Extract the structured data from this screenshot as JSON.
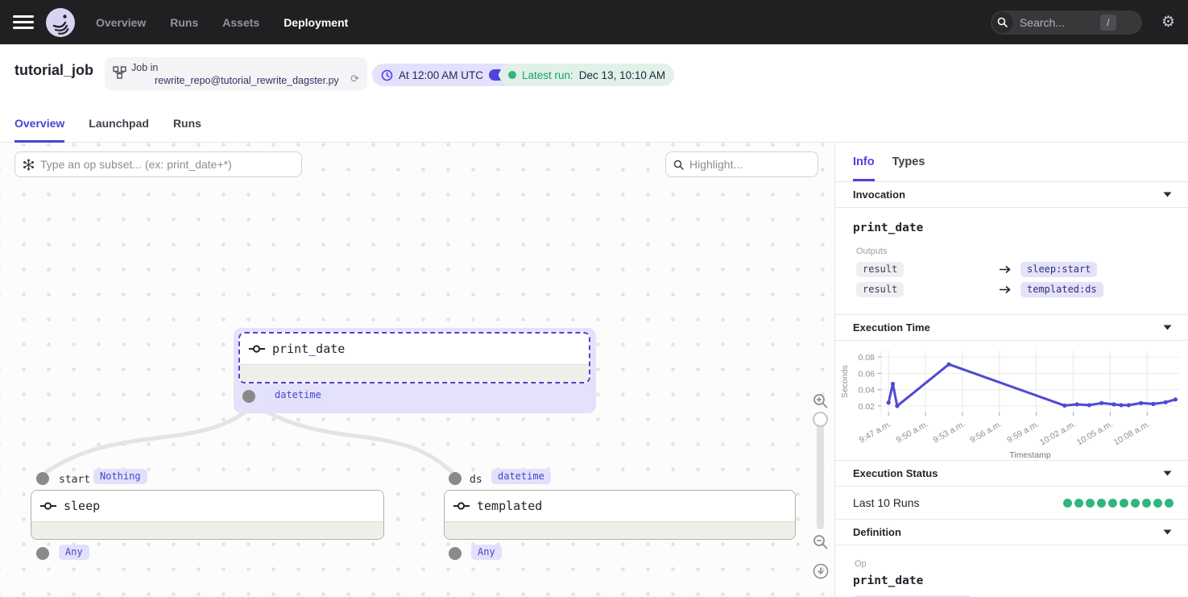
{
  "topbar": {
    "nav": [
      "Overview",
      "Runs",
      "Assets",
      "Deployment"
    ],
    "active_nav": "Deployment",
    "search_placeholder": "Search...",
    "search_shortcut": "/"
  },
  "header": {
    "title": "tutorial_job",
    "job_label": "Job in",
    "repo": "rewrite_repo@tutorial_rewrite_dagster.py",
    "schedule": "At 12:00 AM UTC",
    "latest_run_label": "Latest run:",
    "latest_run_value": "Dec 13, 10:10 AM"
  },
  "tabs": {
    "items": [
      "Overview",
      "Launchpad",
      "Runs"
    ],
    "active": "Overview"
  },
  "canvas": {
    "op_filter_placeholder": "Type an op subset... (ex: print_date+*)",
    "highlight_placeholder": "Highlight...",
    "nodes": {
      "print_date": {
        "name": "print_date",
        "output_type": "datetime",
        "selected": true
      },
      "sleep": {
        "name": "sleep",
        "input_name": "start",
        "input_type": "Nothing",
        "output_type": "Any"
      },
      "templated": {
        "name": "templated",
        "input_name": "ds",
        "input_type": "datetime",
        "output_type": "Any"
      }
    }
  },
  "panel": {
    "tabs": [
      "Info",
      "Types"
    ],
    "active_tab": "Info",
    "invocation": {
      "header": "Invocation",
      "name": "print_date",
      "outputs_label": "Outputs",
      "outputs": [
        {
          "from": "result",
          "to": "sleep:start"
        },
        {
          "from": "result",
          "to": "templated:ds"
        }
      ]
    },
    "execution_time": {
      "header": "Execution Time"
    },
    "execution_status": {
      "header": "Execution Status",
      "label": "Last 10 Runs",
      "run_count": 10,
      "status_color": "#2fb67e"
    },
    "definition": {
      "header": "Definition",
      "op_label": "Op",
      "op_name": "print_date"
    }
  },
  "chart_data": {
    "type": "line",
    "title": "Execution Time",
    "ylabel": "Seconds",
    "xlabel": "Timestamp",
    "x_tick_labels": [
      "9:47 a.m.",
      "9:50 a.m.",
      "9:53 a.m.",
      "9:56 a.m.",
      "9:59 a.m.",
      "10:02 a.m.",
      "10:05 a.m.",
      "10:08 a.m."
    ],
    "x_tick_minutes": [
      0,
      3,
      6,
      9,
      12,
      15,
      18,
      21
    ],
    "y_ticks": [
      0.02,
      0.04,
      0.06,
      0.08
    ],
    "xlim": [
      -0.6,
      23.6
    ],
    "ylim": [
      0.012,
      0.088
    ],
    "grid": true,
    "legend": "none",
    "line_color": "#5048d5",
    "points_minutes_seconds": [
      [
        0,
        0.024
      ],
      [
        0.35,
        0.047
      ],
      [
        0.7,
        0.02
      ],
      [
        4.9,
        0.071
      ],
      [
        14.3,
        0.0205
      ],
      [
        15.3,
        0.022
      ],
      [
        16.3,
        0.021
      ],
      [
        17.3,
        0.0235
      ],
      [
        18.3,
        0.022
      ],
      [
        18.9,
        0.021
      ],
      [
        19.5,
        0.021
      ],
      [
        20.5,
        0.0235
      ],
      [
        21.5,
        0.0225
      ],
      [
        22.5,
        0.0245
      ],
      [
        23.3,
        0.028
      ]
    ]
  }
}
